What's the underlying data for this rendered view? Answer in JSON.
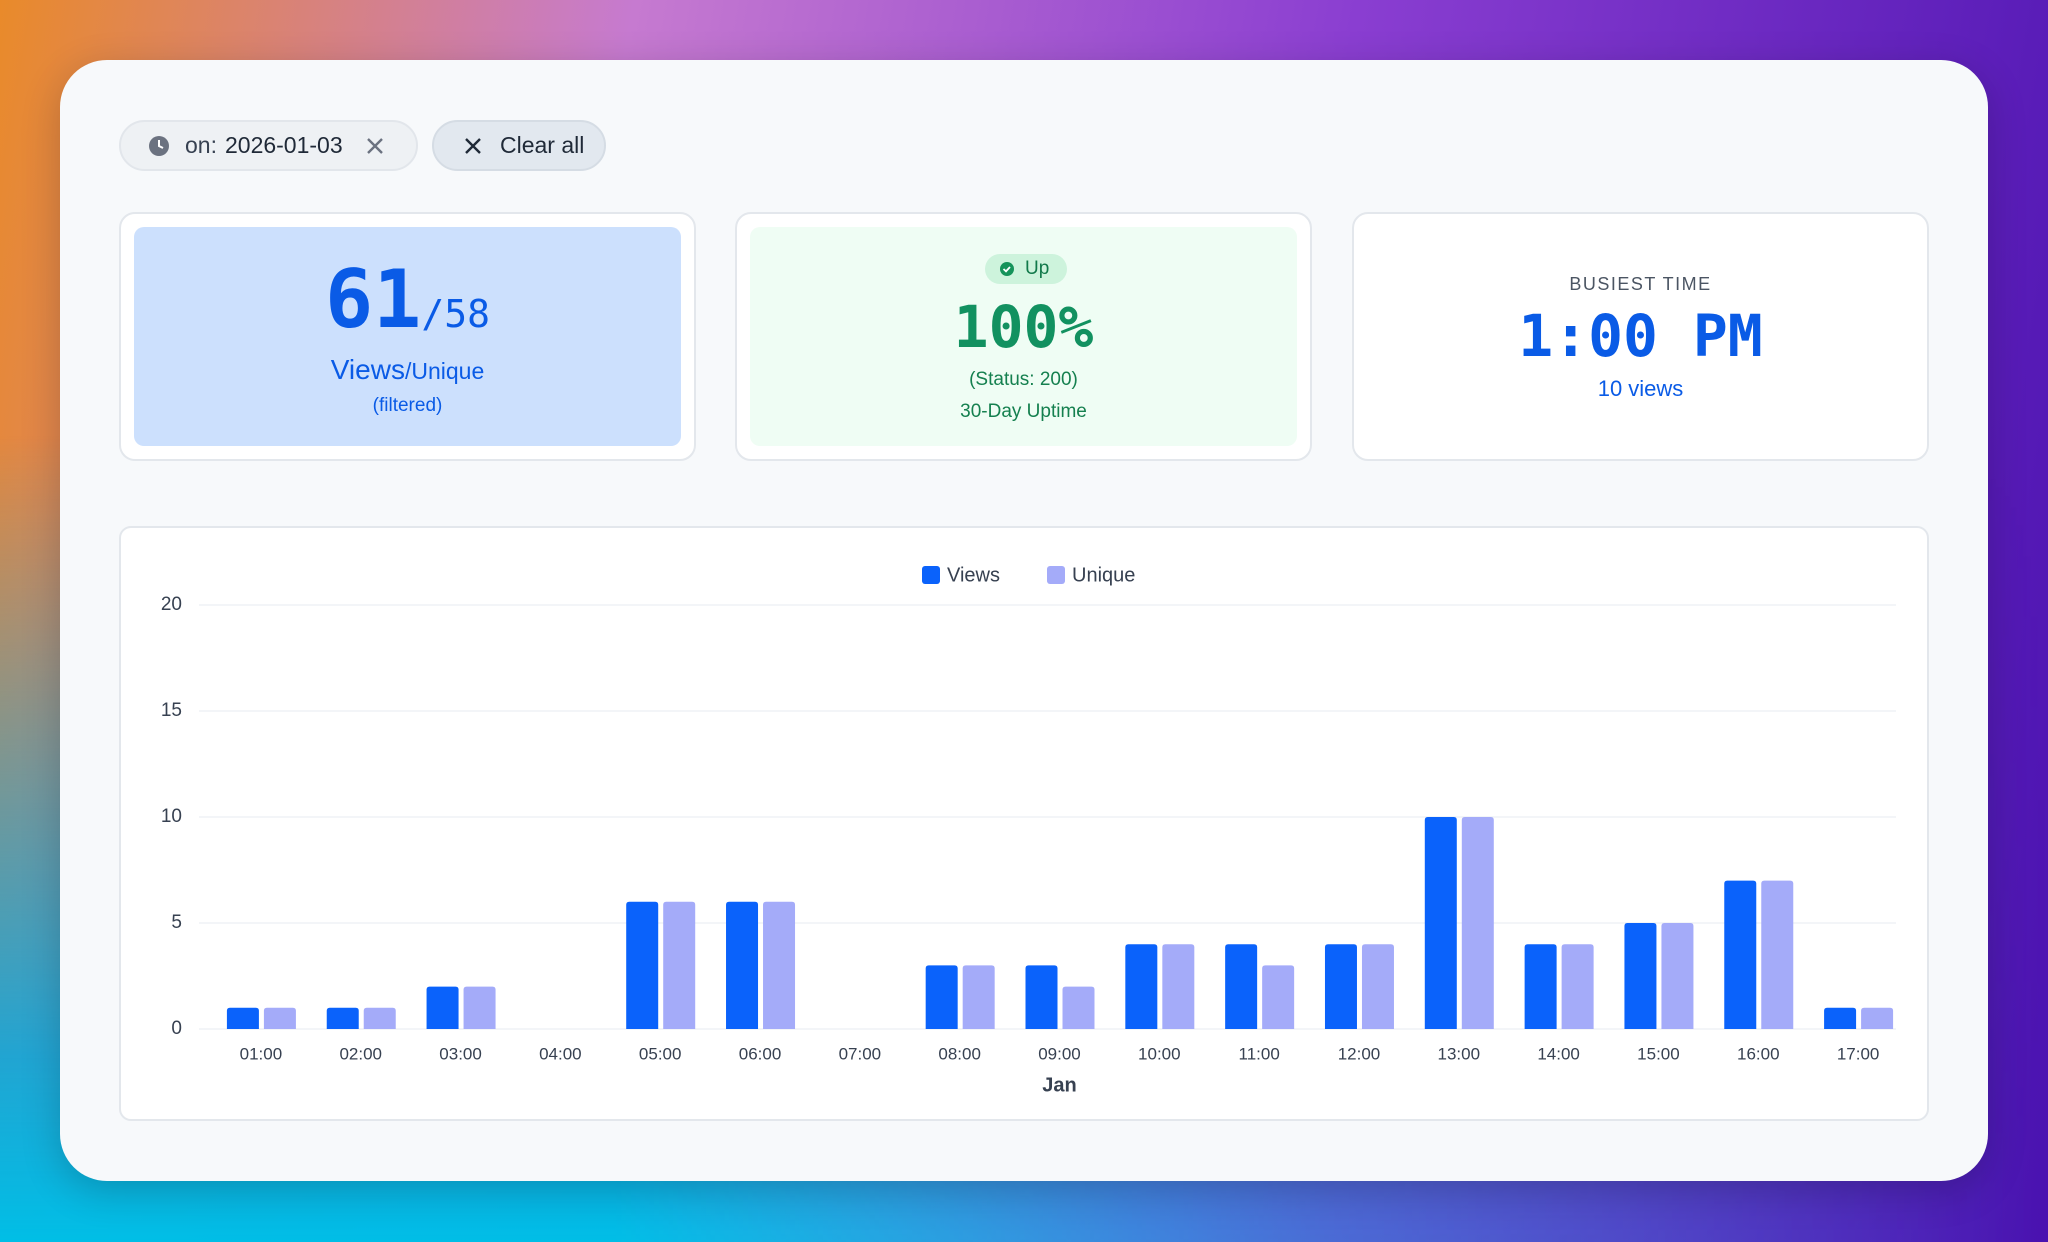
{
  "filters": {
    "chip_prefix": "on:",
    "chip_value": "2026-01-03",
    "clear": "Clear all"
  },
  "stats": {
    "views": {
      "number": "61",
      "unique": "/58",
      "label": "Views",
      "label_unique": "/Unique",
      "note": "(filtered)"
    },
    "uptime": {
      "badge": "Up",
      "value": "100%",
      "status": "(Status: 200)",
      "label": "30-Day Uptime"
    },
    "busiest": {
      "label": "BUSIEST TIME",
      "value": "1:00 PM",
      "note": "10 views"
    }
  },
  "chart_data": {
    "type": "bar",
    "categories": [
      "01:00",
      "02:00",
      "03:00",
      "04:00",
      "05:00",
      "06:00",
      "07:00",
      "08:00",
      "09:00",
      "10:00",
      "11:00",
      "12:00",
      "13:00",
      "14:00",
      "15:00",
      "16:00",
      "17:00"
    ],
    "series": [
      {
        "name": "Views",
        "color": "#0a62fb",
        "values": [
          1,
          1,
          2,
          0,
          6,
          6,
          0,
          3,
          3,
          4,
          4,
          4,
          10,
          4,
          5,
          7,
          1
        ]
      },
      {
        "name": "Unique",
        "color": "#a4abf9",
        "values": [
          1,
          1,
          2,
          0,
          6,
          6,
          0,
          3,
          2,
          4,
          3,
          4,
          10,
          4,
          5,
          7,
          1
        ]
      }
    ],
    "xlabel": "Jan",
    "ylim": [
      0,
      20
    ],
    "yticks": [
      0,
      5,
      10,
      15,
      20
    ],
    "grid": true,
    "legend": "top"
  }
}
